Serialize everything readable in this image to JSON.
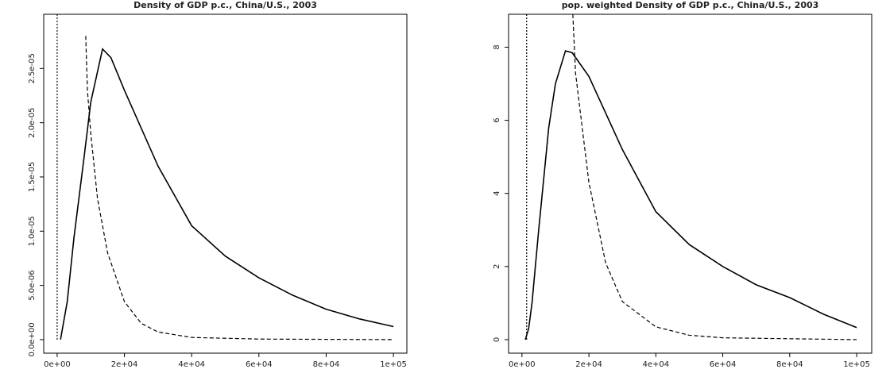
{
  "chart_data": [
    {
      "type": "line",
      "title": "Density of GDP p.c., China/U.S., 2003",
      "xlim": [
        -4000,
        104000
      ],
      "ylim": [
        -1.25e-06,
        3e-05
      ],
      "xticks": [
        {
          "value": 0,
          "label": "0e+00"
        },
        {
          "value": 20000,
          "label": "2e+04"
        },
        {
          "value": 40000,
          "label": "4e+04"
        },
        {
          "value": 60000,
          "label": "6e+04"
        },
        {
          "value": 80000,
          "label": "8e+04"
        },
        {
          "value": 100000,
          "label": "1e+05"
        }
      ],
      "yticks": [
        {
          "value": 0,
          "label": "0.0e+00"
        },
        {
          "value": 5e-06,
          "label": "5.0e-06"
        },
        {
          "value": 1e-05,
          "label": "1.0e-05"
        },
        {
          "value": 1.5e-05,
          "label": "1.5e-05"
        },
        {
          "value": 2e-05,
          "label": "2.0e-05"
        },
        {
          "value": 2.5e-05,
          "label": "2.5e-05"
        }
      ],
      "series": [
        {
          "color": "#000000",
          "dash": "solid",
          "x": [
            1000,
            3000,
            5000,
            8000,
            10000,
            13500,
            16000,
            20000,
            30000,
            40000,
            50000,
            60000,
            70000,
            80000,
            90000,
            100000
          ],
          "values": [
            0,
            3.5e-06,
            9.4e-06,
            1.68e-05,
            2.19e-05,
            2.68e-05,
            2.6e-05,
            2.3e-05,
            1.6e-05,
            1.05e-05,
            7.7e-06,
            5.7e-06,
            4.1e-06,
            2.8e-06,
            1.9e-06,
            1.2e-06
          ]
        },
        {
          "color": "#000000",
          "dash": "dashed",
          "x": [
            8500,
            9000,
            10000,
            12000,
            15000,
            20000,
            25000,
            30000,
            40000,
            60000,
            100000
          ],
          "values": [
            2.8e-05,
            2.3e-05,
            1.9e-05,
            1.3e-05,
            8e-06,
            3.5e-06,
            1.5e-06,
            7e-07,
            2e-07,
            5e-08,
            0
          ]
        },
        {
          "color": "#000000",
          "dash": "dotted",
          "x": [
            0,
            0
          ],
          "values": [
            0,
            3e-05
          ]
        }
      ]
    },
    {
      "type": "line",
      "title": "pop. weighted Density of GDP p.c., China/U.S., 2003",
      "xlim": [
        -4000,
        104500
      ],
      "ylim": [
        -0.37,
        8.9
      ],
      "xticks": [
        {
          "value": 0,
          "label": "0e+00"
        },
        {
          "value": 20000,
          "label": "2e+04"
        },
        {
          "value": 40000,
          "label": "4e+04"
        },
        {
          "value": 60000,
          "label": "6e+04"
        },
        {
          "value": 80000,
          "label": "8e+04"
        },
        {
          "value": 100000,
          "label": "1e+05"
        }
      ],
      "yticks": [
        0,
        2,
        4,
        6,
        8
      ],
      "series": [
        {
          "color": "#000000",
          "dash": "solid",
          "x": [
            1000,
            2000,
            3000,
            5000,
            8000,
            10000,
            13000,
            15000,
            20000,
            30000,
            40000,
            50000,
            60000,
            70000,
            80000,
            90000,
            100000
          ],
          "values": [
            0,
            0.3,
            1.0,
            3.0,
            5.8,
            7.0,
            7.9,
            7.85,
            7.2,
            5.2,
            3.5,
            2.6,
            2.0,
            1.5,
            1.15,
            0.7,
            0.33
          ]
        },
        {
          "color": "#000000",
          "dash": "dashed",
          "x": [
            15200,
            16000,
            18000,
            20000,
            25000,
            30000,
            40000,
            50000,
            60000,
            100000
          ],
          "values": [
            8.9,
            7.3,
            5.8,
            4.3,
            2.1,
            1.04,
            0.35,
            0.12,
            0.05,
            0
          ]
        },
        {
          "color": "#000000",
          "dash": "dotted",
          "x": [
            1400,
            1400
          ],
          "values": [
            0,
            8.9
          ]
        }
      ]
    }
  ]
}
